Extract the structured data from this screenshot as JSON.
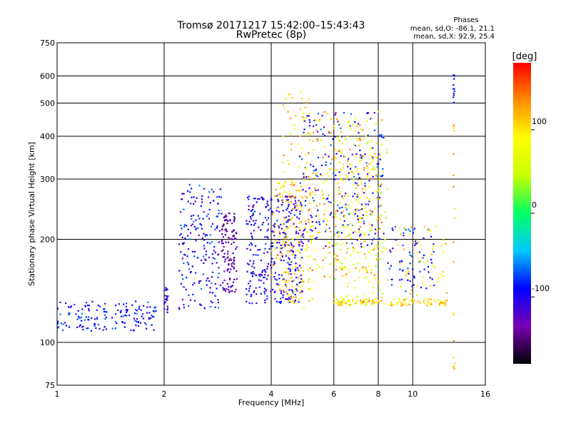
{
  "chart_data": {
    "type": "scatter",
    "title": "Tromsø 20171217 15:42:00–15:43:43",
    "subtitle": "RwPretec (8p)",
    "xlabel": "Frequency [MHz]",
    "ylabel": "Stationary phase Virtual Height [km]",
    "x_scale": "log",
    "y_scale": "log",
    "xlim": [
      1,
      16
    ],
    "ylim": [
      75,
      750
    ],
    "x_ticks": [
      1,
      2,
      4,
      6,
      8,
      10,
      16
    ],
    "y_ticks": [
      75,
      100,
      200,
      300,
      400,
      500,
      600,
      750
    ],
    "grid": true,
    "phase_info": {
      "title": "Phases",
      "line1": "mean, sd,O:  -86.1, 21.1",
      "line2": "mean, sd,X:  92.9, 25.4"
    },
    "colorbar": {
      "label": "[deg]",
      "range": [
        -180,
        180
      ],
      "ticks": [
        100,
        0,
        -100
      ],
      "colors": [
        "#000000",
        "#7a00b4",
        "#0000ff",
        "#00c8ff",
        "#00ff64",
        "#c8ff00",
        "#ffff00",
        "#ff8c00",
        "#ff0000"
      ]
    },
    "series": [
      {
        "x_range": [
          1.0,
          1.9
        ],
        "y_range": [
          108,
          132
        ],
        "phase": [
          -120,
          -60
        ],
        "count": 160
      },
      {
        "x_range": [
          2.0,
          2.05
        ],
        "y_range": [
          122,
          148
        ],
        "phase": [
          -130,
          -80
        ],
        "count": 20
      },
      {
        "x_range": [
          2.2,
          2.9
        ],
        "y_range": [
          125,
          290
        ],
        "phase": [
          -130,
          -60
        ],
        "count": 190
      },
      {
        "x_range": [
          2.9,
          3.2
        ],
        "y_range": [
          140,
          240
        ],
        "phase": [
          -160,
          -110
        ],
        "count": 120
      },
      {
        "x_range": [
          3.4,
          4.9
        ],
        "y_range": [
          130,
          270
        ],
        "phase": [
          -130,
          -70
        ],
        "count": 360
      },
      {
        "x_range": [
          4.0,
          4.9
        ],
        "y_range": [
          130,
          300
        ],
        "phase": [
          80,
          140
        ],
        "count": 120
      },
      {
        "x_range": [
          4.3,
          5.4
        ],
        "y_range": [
          125,
          560
        ],
        "phase": [
          60,
          140
        ],
        "count": 110
      },
      {
        "x_range": [
          4.8,
          8.3
        ],
        "y_range": [
          190,
          470
        ],
        "phase": [
          -130,
          -60
        ],
        "count": 230
      },
      {
        "x_range": [
          5.0,
          8.2
        ],
        "y_range": [
          150,
          480
        ],
        "phase": [
          60,
          150
        ],
        "count": 260
      },
      {
        "x_range": [
          6.0,
          8.5
        ],
        "y_range": [
          130,
          410
        ],
        "phase": [
          30,
          110
        ],
        "count": 150
      },
      {
        "x_range": [
          6.0,
          12.5
        ],
        "y_range": [
          128,
          134
        ],
        "phase": [
          60,
          140
        ],
        "count": 130
      },
      {
        "x_range": [
          8.5,
          11.5
        ],
        "y_range": [
          140,
          220
        ],
        "phase": [
          -120,
          -60
        ],
        "count": 70
      },
      {
        "x_range": [
          9.0,
          12.5
        ],
        "y_range": [
          130,
          220
        ],
        "phase": [
          60,
          130
        ],
        "count": 50
      },
      {
        "x_range": [
          13.0,
          13.1
        ],
        "y_range": [
          500,
          620
        ],
        "phase": [
          -100,
          -70
        ],
        "count": 12
      },
      {
        "x_range": [
          13.0,
          13.1
        ],
        "y_range": [
          80,
          480
        ],
        "phase": [
          100,
          140
        ],
        "count": 20
      }
    ]
  }
}
